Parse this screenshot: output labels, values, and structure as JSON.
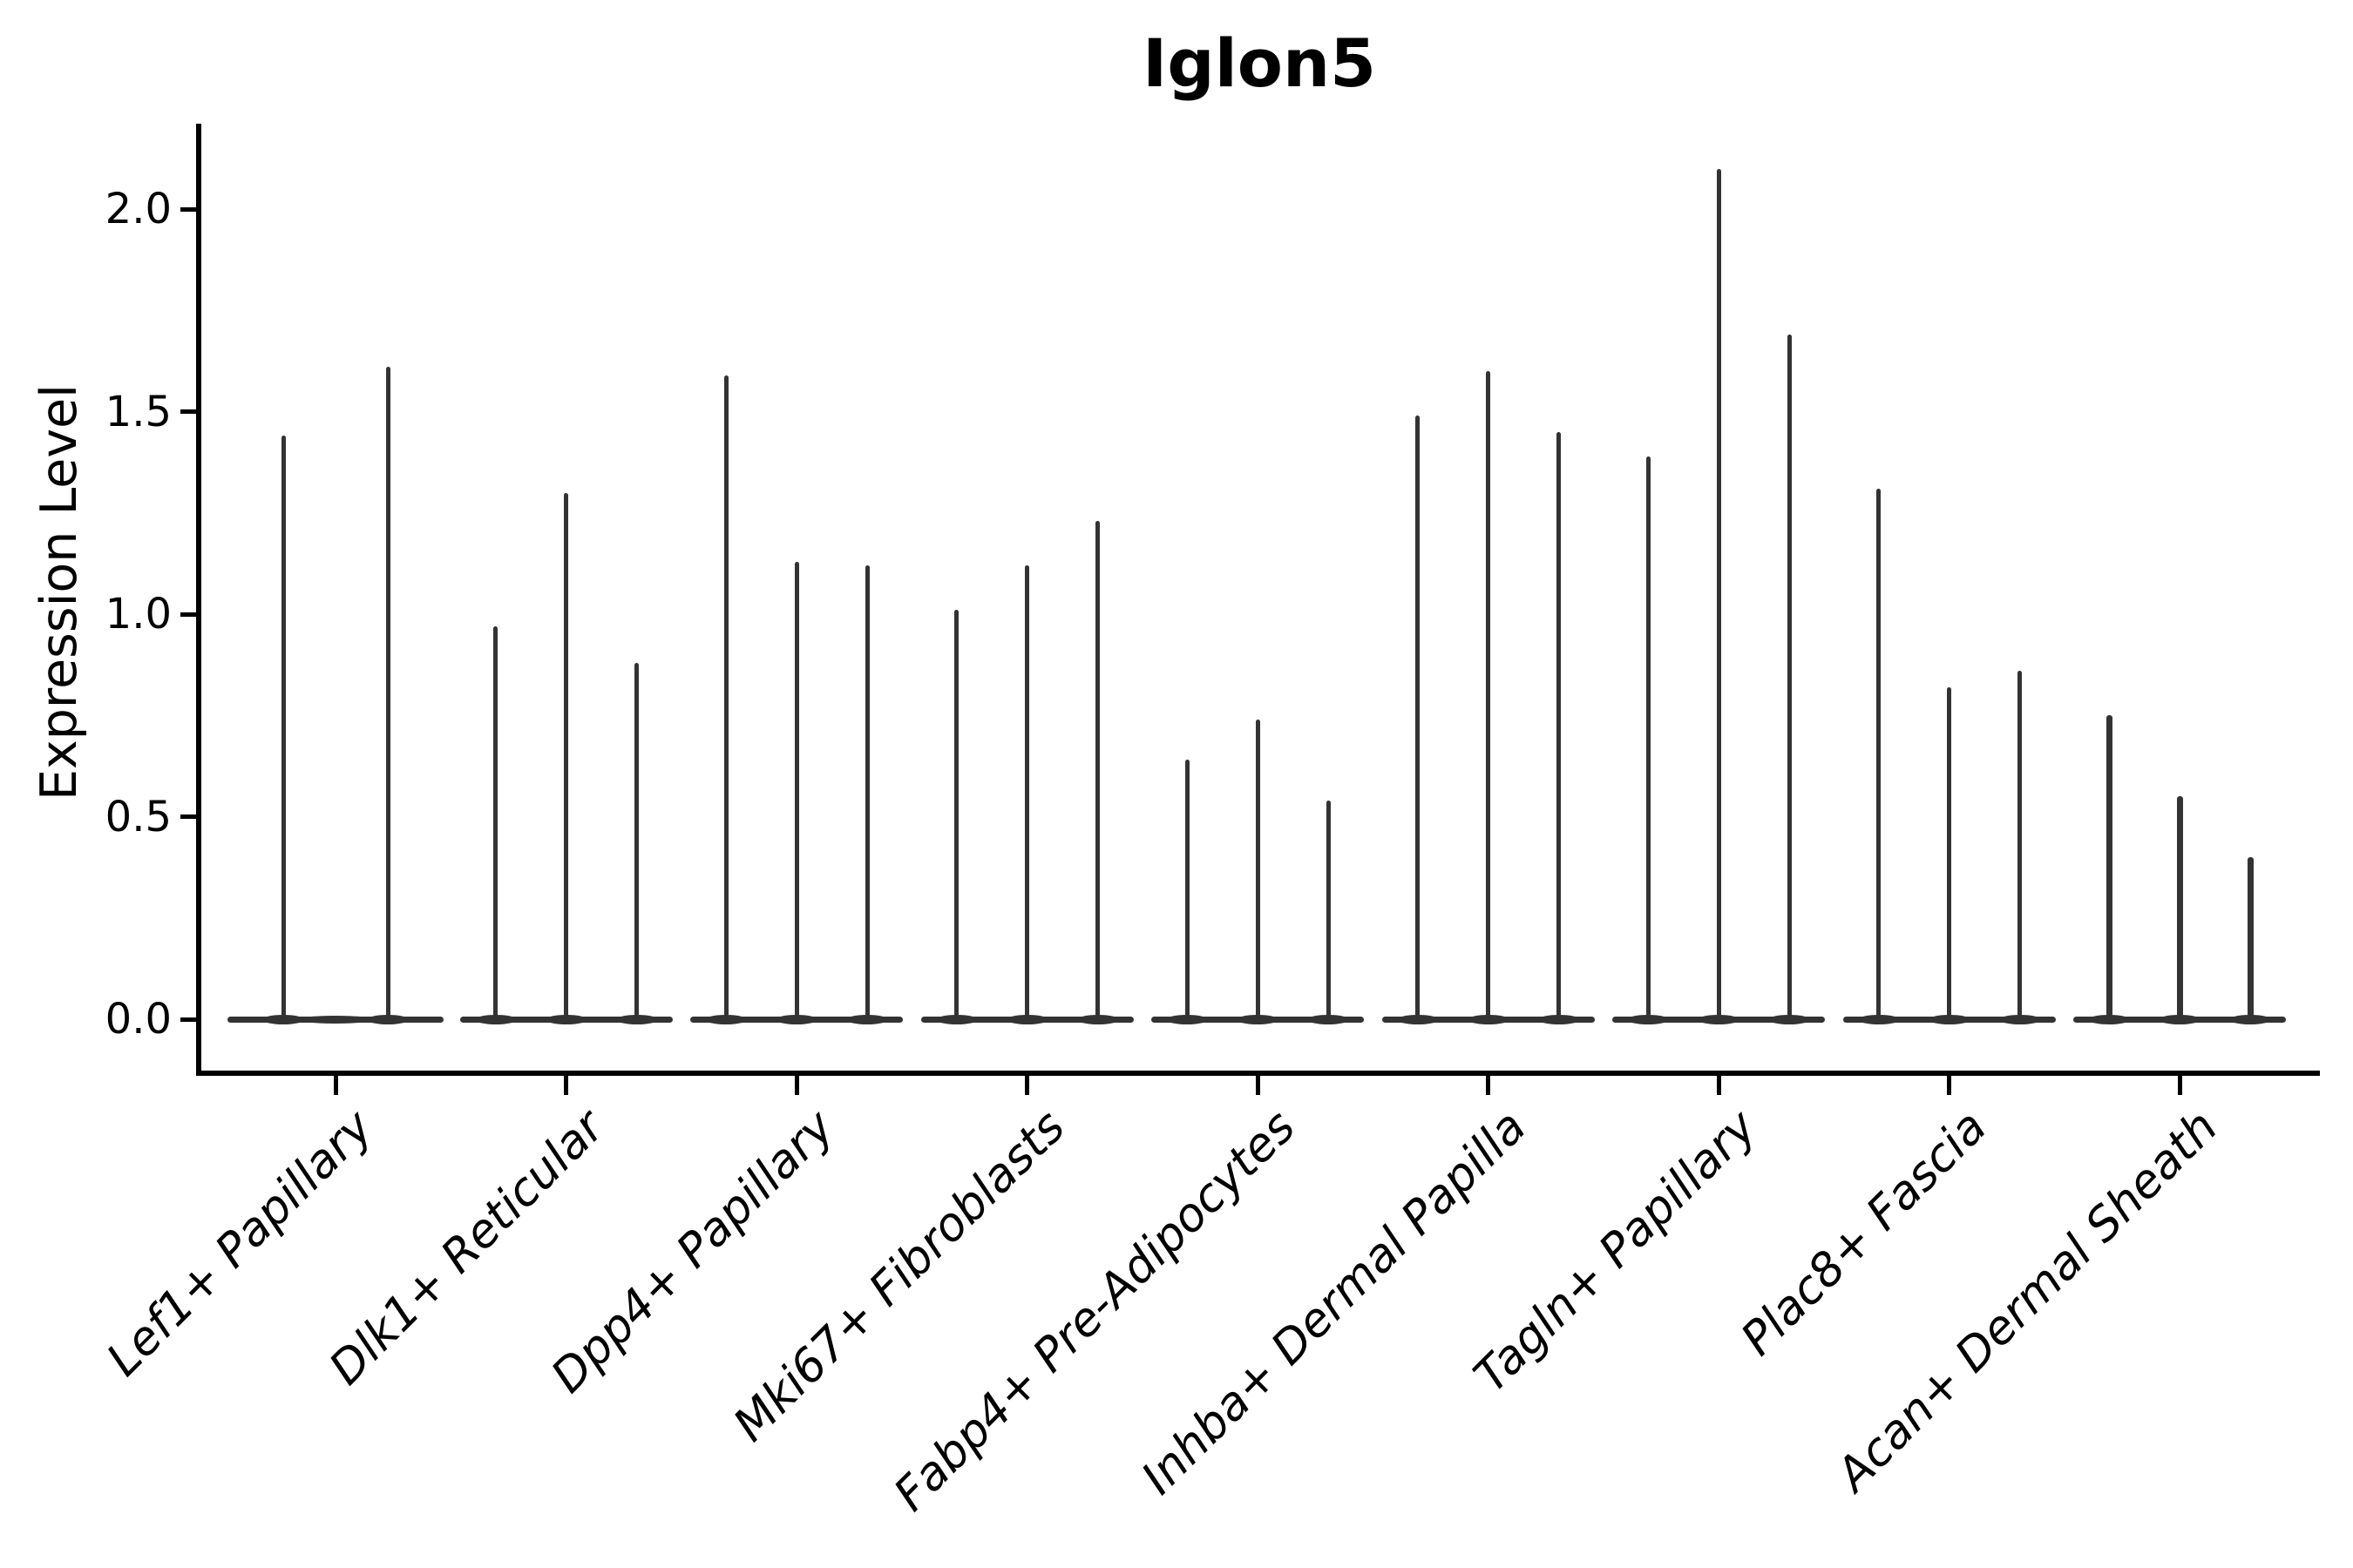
{
  "chart_data": {
    "type": "violin",
    "title": "Iglon5",
    "xlabel": "",
    "ylabel": "Expression Level",
    "ylim": [
      -0.13,
      2.21
    ],
    "yticks": [
      0.0,
      0.5,
      1.0,
      1.5,
      2.0
    ],
    "grid": false,
    "legend": "none",
    "categories": [
      "Lef1+ Papillary",
      "Dlk1+ Reticular",
      "Dpp4+ Papillary",
      "Mki67+ Fibroblasts",
      "Fabp4+ Pre-Adipocytes",
      "Inhba+ Dermal Papilla",
      "Tagln+ Papillary",
      "Plac8+ Fascia",
      "Acan+ Dermal Sheath"
    ],
    "series": [
      {
        "category": "Lef1+ Papillary",
        "violin_max_values": [
          1.44,
          1.61
        ]
      },
      {
        "category": "Dlk1+ Reticular",
        "violin_max_values": [
          0.97,
          1.3,
          0.88
        ]
      },
      {
        "category": "Dpp4+ Papillary",
        "violin_max_values": [
          1.59,
          1.13,
          1.12
        ]
      },
      {
        "category": "Mki67+ Fibroblasts",
        "violin_max_values": [
          1.01,
          1.12,
          1.23
        ]
      },
      {
        "category": "Fabp4+ Pre-Adipocytes",
        "violin_max_values": [
          0.64,
          0.74,
          0.54
        ]
      },
      {
        "category": "Inhba+ Dermal Papilla",
        "violin_max_values": [
          1.49,
          1.6,
          1.45
        ]
      },
      {
        "category": "Tagln+ Papillary",
        "violin_max_values": [
          1.39,
          2.1,
          1.69
        ]
      },
      {
        "category": "Plac8+ Fascia",
        "violin_max_values": [
          1.31,
          0.82,
          0.86
        ]
      },
      {
        "category": "Acan+ Dermal Sheath",
        "violin_max_values": [
          0.75,
          0.55,
          0.4
        ]
      }
    ],
    "colors": {
      "violin": "#333333",
      "axis": "#000000",
      "text": "#000000",
      "background": "#ffffff"
    }
  }
}
